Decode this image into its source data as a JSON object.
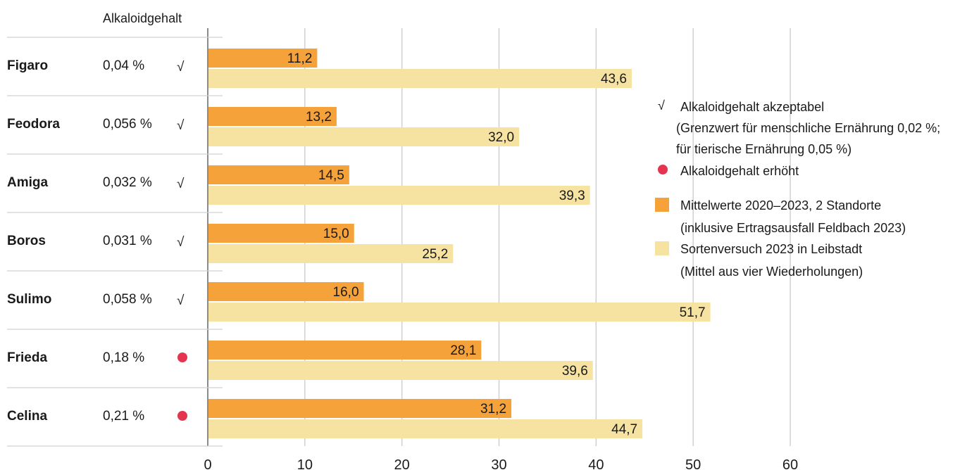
{
  "chart_data": {
    "type": "bar",
    "orientation": "horizontal",
    "column_header": "Alkaloidgehalt",
    "categories": [
      "Figaro",
      "Feodora",
      "Amiga",
      "Boros",
      "Sulimo",
      "Frieda",
      "Celina"
    ],
    "alkaloid_values": [
      "0,04 %",
      "0,056 %",
      "0,032 %",
      "0,031 %",
      "0,058 %",
      "0,18 %",
      "0,21 %"
    ],
    "alkaloid_status": [
      "acceptable",
      "acceptable",
      "acceptable",
      "acceptable",
      "acceptable",
      "elevated",
      "elevated"
    ],
    "check_mark": "√",
    "series": [
      {
        "name": "Mittelwerte 2020–2023, 2 Standorte",
        "values": [
          11.2,
          13.2,
          14.5,
          15.0,
          16.0,
          28.1,
          31.2
        ],
        "labels": [
          "11,2",
          "13,2",
          "14,5",
          "15,0",
          "16,0",
          "28,1",
          "31,2"
        ],
        "color": "#f5a23a"
      },
      {
        "name": "Sortenversuch 2023 in Leibstadt",
        "values": [
          43.6,
          32.0,
          39.3,
          25.2,
          51.7,
          39.6,
          44.7
        ],
        "labels": [
          "43,6",
          "32,0",
          "39,3",
          "25,2",
          "51,7",
          "39,6",
          "44,7"
        ],
        "color": "#f7e3a1"
      }
    ],
    "xlim": [
      0,
      60
    ],
    "xticks": [
      0,
      10,
      20,
      30,
      40,
      50,
      60
    ],
    "grid": true,
    "legend_position": "right",
    "legend": {
      "check_line1": "Alkaloidgehalt akzeptabel",
      "check_line2": "(Grenzwert für menschliche Ernährung 0,02 %;",
      "check_line3": "für tierische Ernährung 0,05 %)",
      "dot_line1": "Alkaloidgehalt erhöht",
      "series1_line1": "Mittelwerte 2020–2023, 2 Standorte",
      "series1_line2": "(inklusive Ertragsausfall Feldbach 2023)",
      "series2_line1": "Sortenversuch 2023 in Leibstadt",
      "series2_line2": "(Mittel aus vier Wiederholungen)"
    },
    "colors": {
      "grid": "#d0d0d0",
      "dot": "#e5344f",
      "axis": "#8a8a8a"
    }
  }
}
